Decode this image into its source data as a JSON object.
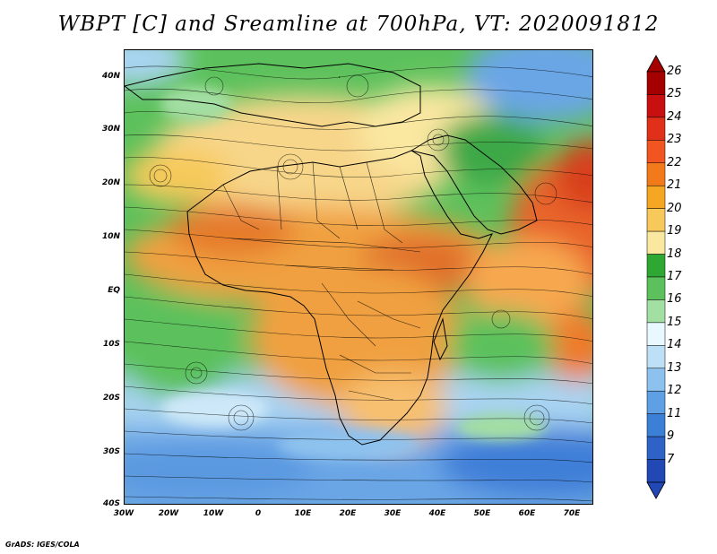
{
  "title": "WBPT [C] and Sreamline at 700hPa, VT: 2020091812",
  "credit": "GrADS: IGES/COLA",
  "axes": {
    "lat_labels": [
      "40N",
      "30N",
      "20N",
      "10N",
      "EQ",
      "10S",
      "20S",
      "30S",
      "40S"
    ],
    "lon_labels": [
      "30W",
      "20W",
      "10W",
      "0",
      "10E",
      "20E",
      "30E",
      "40E",
      "50E",
      "60E",
      "70E"
    ],
    "lat_range": [
      -40,
      45
    ],
    "lon_range": [
      -30,
      75
    ]
  },
  "colorbar": {
    "labels": [
      "26",
      "25",
      "24",
      "23",
      "22",
      "21",
      "20",
      "19",
      "18",
      "17",
      "16",
      "15",
      "14",
      "13",
      "12",
      "11",
      "9",
      "7"
    ],
    "colors": [
      "#a50000",
      "#c81010",
      "#e0301a",
      "#f05522",
      "#f27a1a",
      "#f5a623",
      "#f7c95a",
      "#fae7a0",
      "#2ea832",
      "#5cc15c",
      "#a3dea3",
      "#e8f8ff",
      "#bde0f7",
      "#8ec2ee",
      "#5f9fe3",
      "#3b7fd6",
      "#2f62c7",
      "#2148b5"
    ]
  }
}
